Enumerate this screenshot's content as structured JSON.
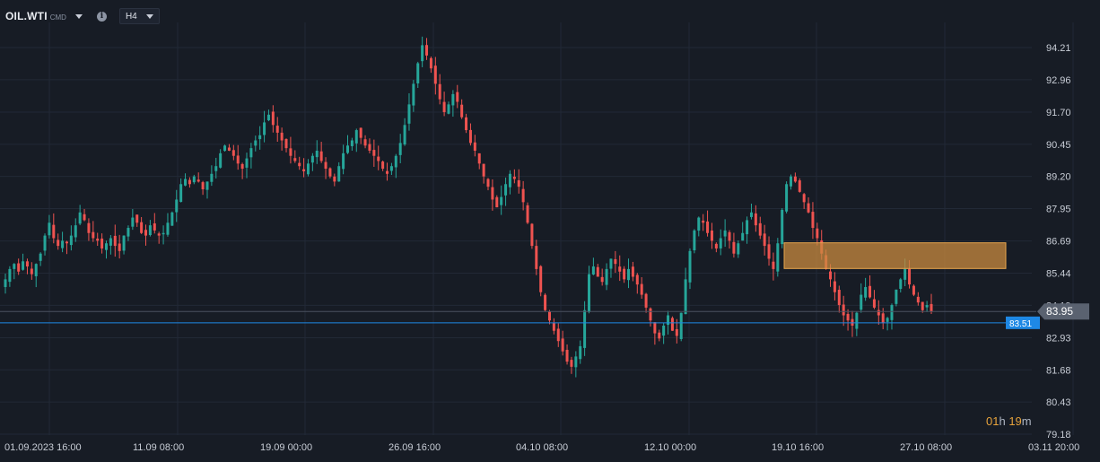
{
  "header": {
    "symbol": "OIL.WTI",
    "exchange": "CMD",
    "info_icon": "info-icon",
    "timeframe": "H4"
  },
  "axis": {
    "y_ticks": [
      "94.21",
      "92.96",
      "91.70",
      "90.45",
      "89.20",
      "87.95",
      "86.69",
      "85.44",
      "84.19",
      "82.93",
      "81.68",
      "80.43",
      "79.18"
    ],
    "x_ticks": [
      "01.09.2023  16:00",
      "11.09  08:00",
      "19.09  00:00",
      "26.09  16:00",
      "04.10  08:00",
      "12.10  00:00",
      "19.10  16:00",
      "27.10  08:00",
      "03.11  20:00"
    ],
    "ylim": [
      79.18,
      94.21
    ]
  },
  "price_lines": {
    "current_price": "83.95",
    "current_price_color": "#5a6270",
    "blue_line": "83.51",
    "blue_line_color": "#1e88e5"
  },
  "zone": {
    "top": 86.62,
    "bottom": 85.62,
    "fill": "#c98a3f",
    "border": "#e6a44d"
  },
  "countdown": {
    "hours": "01",
    "hours_unit": "h",
    "minutes": "19",
    "minutes_unit": "m"
  },
  "colors": {
    "up": "#26a69a",
    "down": "#ef5350",
    "grid": "#222936",
    "background": "#171c25"
  },
  "chart_data": {
    "type": "candlestick",
    "ylim": [
      79.18,
      94.21
    ],
    "ohlc_close_path": [
      85.2,
      85.6,
      85.8,
      85.5,
      85.9,
      85.7,
      85.4,
      85.8,
      86.2,
      86.9,
      87.4,
      86.8,
      86.5,
      86.7,
      86.6,
      86.9,
      87.3,
      87.8,
      87.5,
      87.0,
      86.8,
      86.7,
      86.4,
      86.6,
      86.8,
      86.5,
      86.3,
      86.9,
      87.2,
      87.6,
      87.4,
      87.0,
      86.9,
      87.3,
      87.1,
      86.9,
      87.0,
      87.4,
      87.8,
      88.3,
      88.9,
      89.1,
      88.9,
      89.2,
      89.0,
      88.7,
      89.0,
      89.3,
      89.6,
      90.1,
      90.4,
      90.2,
      90.0,
      89.7,
      89.5,
      89.9,
      90.3,
      90.6,
      90.8,
      91.3,
      91.6,
      91.2,
      90.9,
      90.6,
      90.3,
      90.0,
      89.8,
      89.6,
      89.4,
      89.7,
      90.0,
      90.2,
      89.8,
      89.5,
      89.2,
      89.0,
      89.6,
      90.1,
      90.4,
      90.6,
      91.0,
      90.7,
      90.4,
      90.2,
      90.0,
      89.8,
      89.5,
      89.3,
      89.6,
      90.0,
      90.5,
      91.2,
      92.0,
      92.8,
      93.6,
      94.3,
      93.9,
      93.4,
      92.8,
      92.2,
      91.7,
      92.0,
      92.4,
      92.1,
      91.5,
      91.0,
      90.5,
      90.2,
      89.7,
      89.2,
      88.8,
      88.3,
      88.0,
      88.4,
      88.9,
      89.3,
      89.1,
      88.8,
      88.2,
      87.4,
      86.5,
      85.6,
      84.7,
      84.0,
      83.6,
      83.2,
      82.8,
      82.4,
      82.0,
      81.8,
      82.2,
      82.6,
      84.0,
      85.4,
      85.7,
      85.3,
      85.1,
      85.6,
      86.0,
      85.8,
      85.5,
      85.2,
      85.6,
      85.3,
      85.0,
      84.6,
      84.1,
      83.6,
      83.1,
      82.9,
      83.4,
      83.8,
      83.2,
      83.0,
      83.9,
      85.2,
      86.3,
      87.1,
      87.6,
      87.4,
      87.0,
      86.7,
      86.4,
      86.8,
      87.1,
      86.7,
      86.2,
      86.6,
      87.0,
      87.5,
      87.8,
      87.3,
      86.9,
      86.5,
      86.0,
      85.6,
      86.6,
      87.9,
      88.9,
      89.2,
      89.0,
      88.6,
      88.2,
      87.8,
      87.2,
      86.8,
      86.2,
      85.6,
      85.2,
      84.7,
      84.2,
      83.8,
      83.6,
      83.4,
      83.9,
      84.6,
      84.9,
      84.5,
      84.1,
      83.8,
      83.5,
      83.7,
      84.2,
      84.8,
      85.2,
      85.6,
      85.0,
      84.6,
      84.3,
      84.0,
      84.2,
      83.95
    ],
    "price_markers": [
      83.95,
      83.51
    ],
    "title": ""
  }
}
